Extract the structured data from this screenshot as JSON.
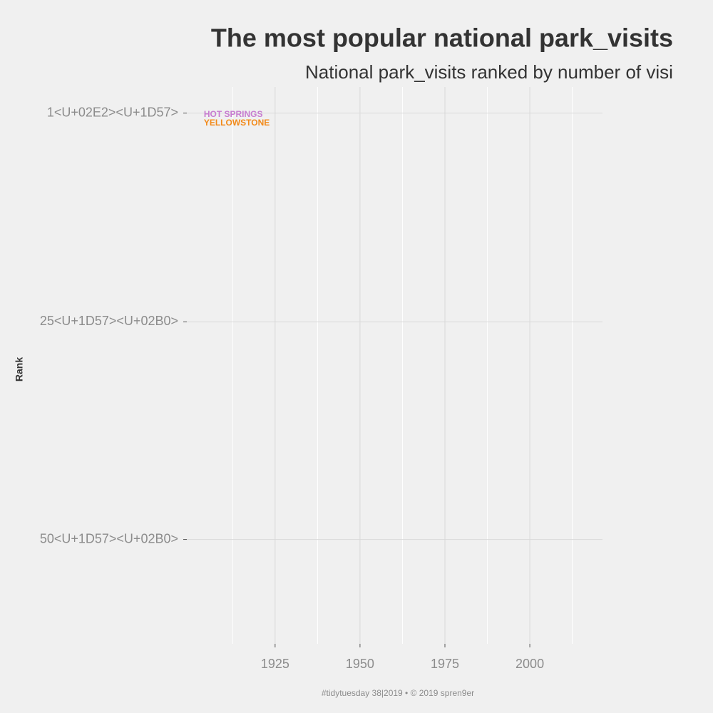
{
  "chart_data": {
    "type": "text",
    "title": "The most popular national park_visits",
    "subtitle": "National park_visits ranked by number of visi",
    "caption": "#tidytuesday 38|2019  •  © 2019 spren9er",
    "ylabel": "Rank",
    "xlim": [
      1899,
      2021.4
    ],
    "xticks": [
      1925,
      1950,
      1975,
      2000
    ],
    "ylim": [
      62,
      -2
    ],
    "yticks": [
      {
        "value": 1,
        "label": "1<U+02E2><U+1D57>"
      },
      {
        "value": 25,
        "label": "25<U+1D57><U+02B0>"
      },
      {
        "value": 50,
        "label": "50<U+1D57><U+02B0>"
      }
    ],
    "grid": true,
    "series": [
      {
        "name": "HOT SPRINGS",
        "color": "#c77cd0",
        "x": [
          1904
        ],
        "values": [
          1
        ]
      },
      {
        "name": "YELLOWSTONE",
        "color": "#f28a1a",
        "x": [
          1904
        ],
        "values": [
          2
        ]
      }
    ]
  }
}
